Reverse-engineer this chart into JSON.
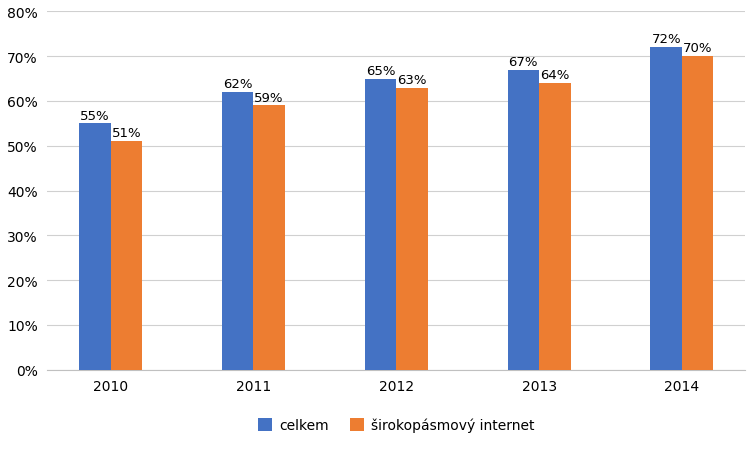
{
  "years": [
    "2010",
    "2011",
    "2012",
    "2013",
    "2014"
  ],
  "celkem": [
    0.55,
    0.62,
    0.65,
    0.67,
    0.72
  ],
  "sirokopasmy": [
    0.51,
    0.59,
    0.63,
    0.64,
    0.7
  ],
  "color_celkem": "#4472C4",
  "color_sirokopasmy": "#ED7D31",
  "legend_celkem": "celkem",
  "legend_sirokopasmy": "širokopásmový internet",
  "ylim": [
    0.0,
    0.8
  ],
  "yticks": [
    0.0,
    0.1,
    0.2,
    0.3,
    0.4,
    0.5,
    0.6,
    0.7,
    0.8
  ],
  "bar_width": 0.22,
  "label_fontsize": 9.5,
  "tick_fontsize": 10,
  "legend_fontsize": 10,
  "background_color": "#ffffff",
  "grid_color": "#d0d0d0"
}
